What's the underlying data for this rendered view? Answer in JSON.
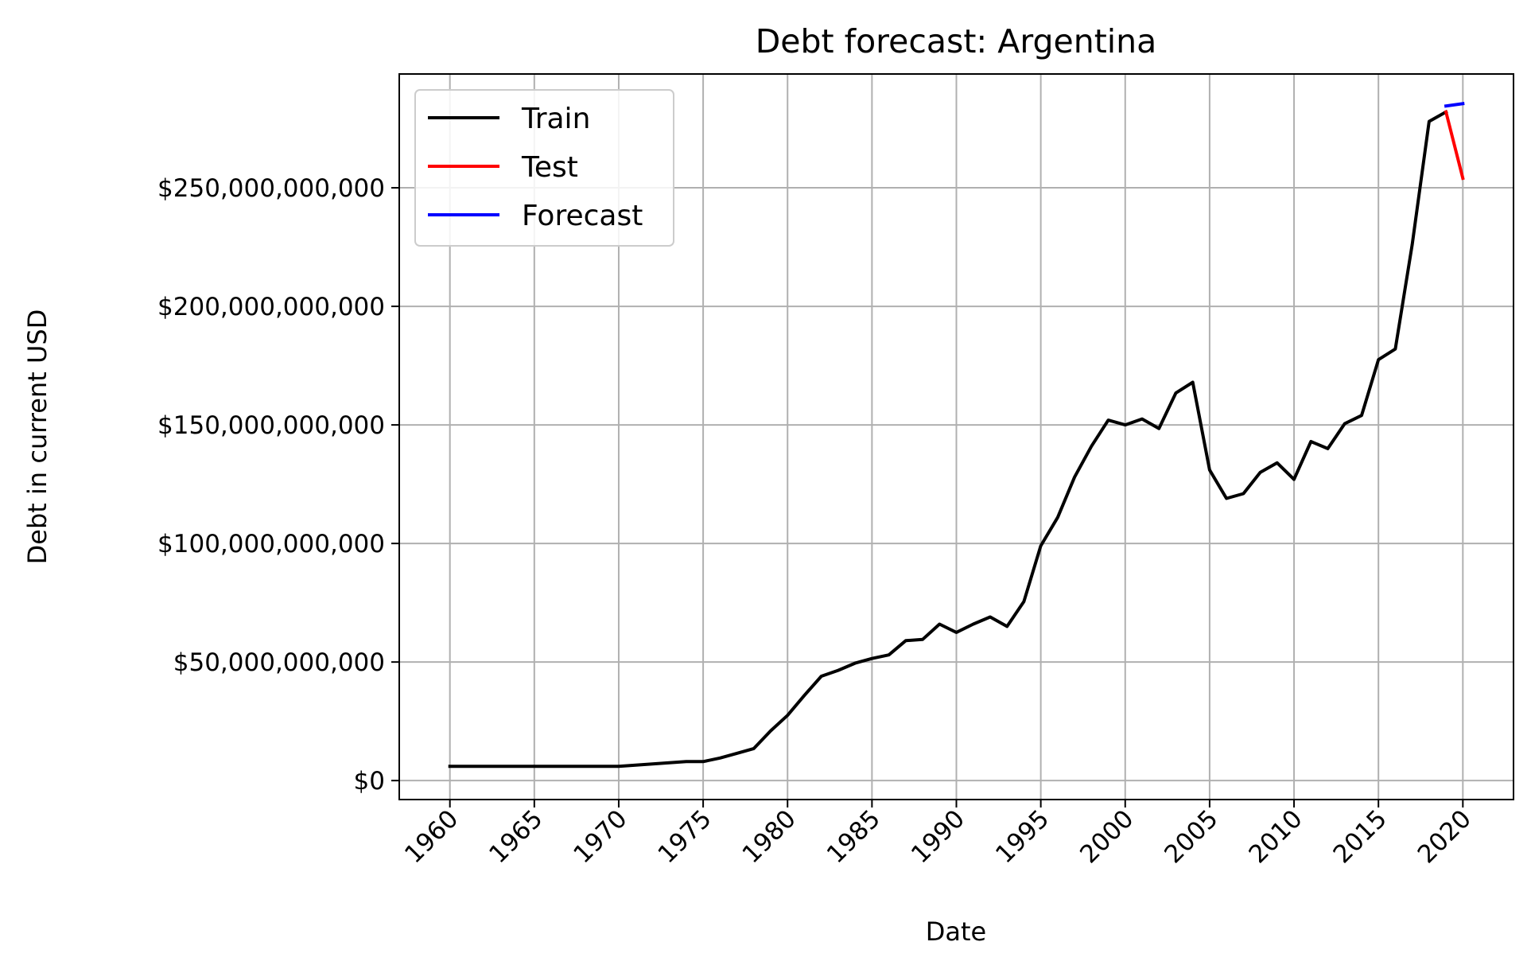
{
  "chart_data": {
    "type": "line",
    "title": "Debt forecast: Argentina",
    "xlabel": "Date",
    "ylabel": "Debt in current USD",
    "xlim": [
      1957,
      2023
    ],
    "ylim": [
      -8000000000,
      298000000000
    ],
    "x_ticks": [
      1960,
      1965,
      1970,
      1975,
      1980,
      1985,
      1990,
      1995,
      2000,
      2005,
      2010,
      2015,
      2020
    ],
    "y_ticks": [
      0,
      50000000000,
      100000000000,
      150000000000,
      200000000000,
      250000000000
    ],
    "y_tick_labels": [
      "$0",
      "$50,000,000,000",
      "$100,000,000,000",
      "$150,000,000,000",
      "$200,000,000,000",
      "$250,000,000,000"
    ],
    "grid": true,
    "legend": "top-left",
    "series": [
      {
        "name": "Train",
        "color": "#000000",
        "x": [
          1960,
          1961,
          1962,
          1963,
          1964,
          1965,
          1966,
          1967,
          1968,
          1969,
          1970,
          1971,
          1972,
          1973,
          1974,
          1975,
          1976,
          1977,
          1978,
          1979,
          1980,
          1981,
          1982,
          1983,
          1984,
          1985,
          1986,
          1987,
          1988,
          1989,
          1990,
          1991,
          1992,
          1993,
          1994,
          1995,
          1996,
          1997,
          1998,
          1999,
          2000,
          2001,
          2002,
          2003,
          2004,
          2005,
          2006,
          2007,
          2008,
          2009,
          2010,
          2011,
          2012,
          2013,
          2014,
          2015,
          2016,
          2017,
          2018,
          2019
        ],
        "values": [
          6000000000,
          6000000000,
          6000000000,
          6000000000,
          6000000000,
          6000000000,
          6000000000,
          6000000000,
          6000000000,
          6000000000,
          6000000000,
          6500000000,
          7000000000,
          7500000000,
          8000000000,
          8000000000,
          9500000000,
          11500000000,
          13500000000,
          21000000000,
          27500000000,
          36000000000,
          44000000000,
          46500000000,
          49500000000,
          51500000000,
          53000000000,
          59000000000,
          59500000000,
          66000000000,
          62500000000,
          66000000000,
          69000000000,
          65000000000,
          75500000000,
          99000000000,
          111000000000,
          128000000000,
          141000000000,
          152000000000,
          150000000000,
          152500000000,
          148500000000,
          163500000000,
          168000000000,
          131000000000,
          119000000000,
          121000000000,
          130000000000,
          134000000000,
          127000000000,
          143000000000,
          140000000000,
          150500000000,
          154000000000,
          177500000000,
          182000000000,
          226000000000,
          278000000000,
          282000000000
        ]
      },
      {
        "name": "Test",
        "color": "#ff0000",
        "x": [
          2019,
          2020
        ],
        "values": [
          282000000000,
          254000000000
        ]
      },
      {
        "name": "Forecast",
        "color": "#0000ff",
        "x": [
          2019,
          2020
        ],
        "values": [
          284500000000,
          285500000000
        ]
      }
    ]
  }
}
